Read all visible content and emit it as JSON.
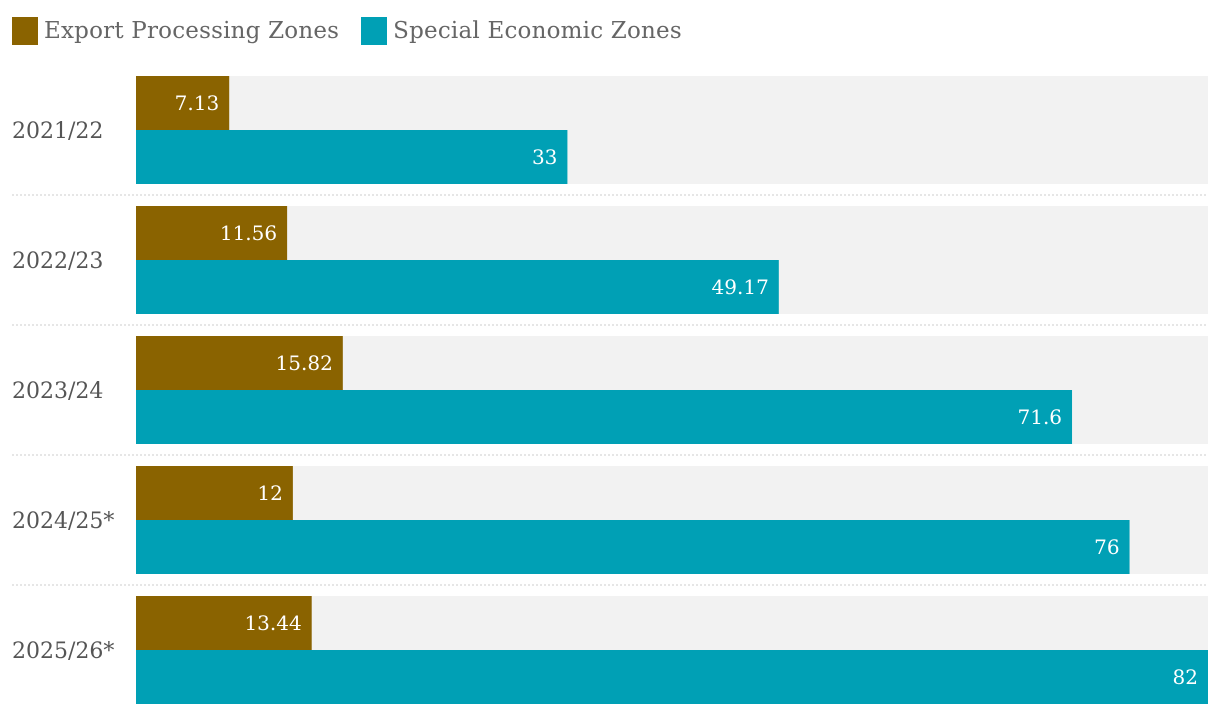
{
  "chart_data": {
    "type": "bar",
    "orientation": "horizontal",
    "title": "",
    "xlabel": "",
    "ylabel": "",
    "xlim": [
      0,
      82
    ],
    "grid": false,
    "legend_position": "top-left",
    "categories": [
      "2021/22",
      "2022/23",
      "2023/24",
      "2024/25*",
      "2025/26*"
    ],
    "series": [
      {
        "name": "Export Processing Zones",
        "color": "#8a6300",
        "values": [
          7.13,
          11.56,
          15.82,
          12,
          13.44
        ],
        "labels": [
          "7.13",
          "11.56",
          "15.82",
          "12",
          "13.44"
        ]
      },
      {
        "name": "Special Economic Zones",
        "color": "#00a0b5",
        "values": [
          33,
          49.17,
          71.6,
          76,
          82
        ],
        "labels": [
          "33",
          "49.17",
          "71.6",
          "76",
          "82"
        ]
      }
    ]
  },
  "colors": {
    "track": "#f2f2f2",
    "separator": "#cccccc",
    "value_text": "#ffffff"
  }
}
